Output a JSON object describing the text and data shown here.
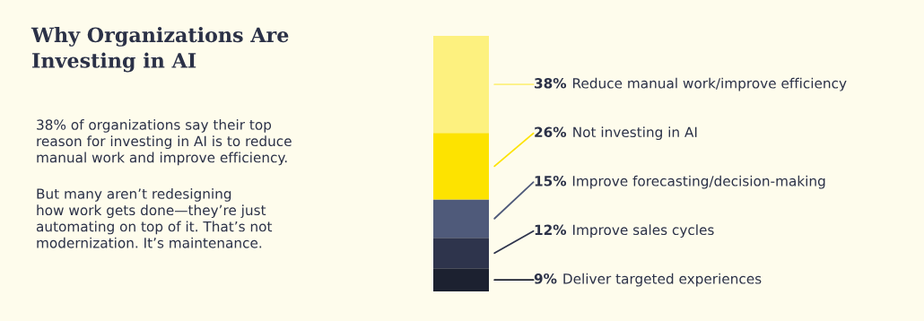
{
  "chart_data": {
    "type": "bar",
    "stacked": true,
    "title": "Why Organizations Are\nInvesting in AI",
    "annotations": [
      "38% of organizations say their top\nreason for investing in AI is to reduce\nmanual work and improve efficiency.",
      "But many aren’t redesigning\nhow work gets done—they’re just\nautomating on top of it. That’s not\nmodernization. It’s maintenance."
    ],
    "categories": [
      null
    ],
    "series": [
      {
        "name": "Deliver targeted experiences",
        "color": "#1c2130",
        "values": [
          9
        ],
        "value_labels": [
          "9%"
        ]
      },
      {
        "name": "Improve sales cycles",
        "color": "#2e344c",
        "values": [
          12
        ],
        "value_labels": [
          "12%"
        ]
      },
      {
        "name": "Improve forecasting/decision-making",
        "color": "#4f5a7a",
        "values": [
          15
        ],
        "value_labels": [
          "15%"
        ]
      },
      {
        "name": "Not investing in AI",
        "color": "#fde300",
        "values": [
          26
        ],
        "value_labels": [
          "26%"
        ]
      },
      {
        "name": "Reduce manual work/improve efficiency",
        "color": "#fdf17f",
        "values": [
          38
        ],
        "value_labels": [
          "38%"
        ]
      }
    ],
    "legend": false
  }
}
